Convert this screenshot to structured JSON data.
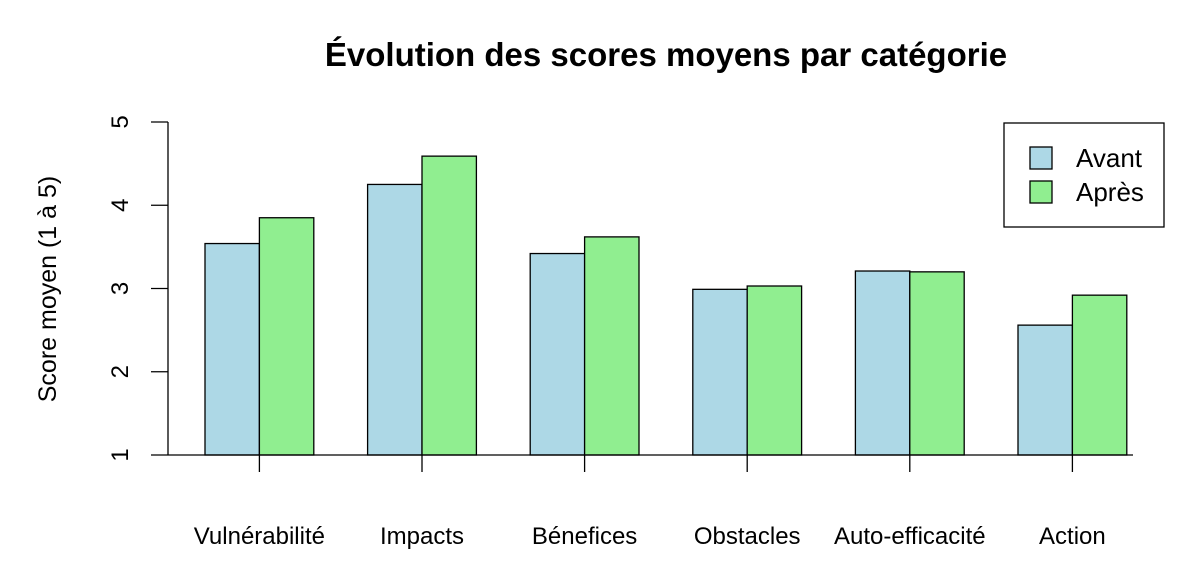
{
  "chart_data": {
    "type": "bar",
    "title": "Évolution des scores moyens par catégorie",
    "xlabel": "",
    "ylabel": "Score moyen (1 à 5)",
    "ylim": [
      1,
      5
    ],
    "yticks": [
      1,
      2,
      3,
      4,
      5
    ],
    "categories": [
      "Vulnérabilité",
      "Impacts",
      "Bénefices",
      "Obstacles",
      "Auto-efficacité",
      "Action"
    ],
    "series": [
      {
        "name": "Avant",
        "color": "#ADD8E6",
        "values": [
          3.54,
          4.25,
          3.42,
          2.99,
          3.21,
          2.56
        ]
      },
      {
        "name": "Après",
        "color": "#90EE90",
        "values": [
          3.85,
          4.59,
          3.62,
          3.03,
          3.2,
          2.92
        ]
      }
    ],
    "grid": false,
    "legend_position": "top-right"
  }
}
